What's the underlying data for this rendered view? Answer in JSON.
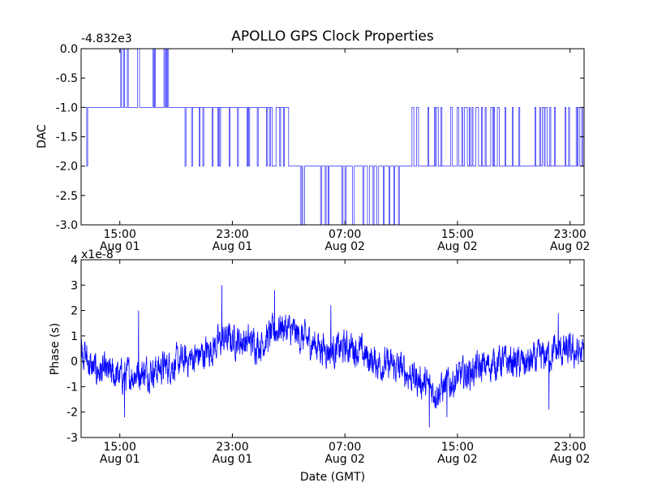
{
  "title": "APOLLO GPS Clock Properties",
  "chart_data": [
    {
      "type": "line",
      "name": "dac-chart",
      "ylabel": "DAC",
      "offset_label": "-4.832e3",
      "ylim": [
        -3.0,
        0.0
      ],
      "yticks": [
        "0.0",
        "-0.5",
        "-1.0",
        "-1.5",
        "-2.0",
        "-2.5",
        "-3.0"
      ],
      "xticks": [
        {
          "time": "15:00",
          "date": "Aug 01"
        },
        {
          "time": "23:00",
          "date": "Aug 01"
        },
        {
          "time": "07:00",
          "date": "Aug 02"
        },
        {
          "time": "15:00",
          "date": "Aug 02"
        },
        {
          "time": "23:00",
          "date": "Aug 02"
        }
      ],
      "xrange": [
        "2012-08-01 12:15",
        "2012-08-03 00:00"
      ],
      "color": "#0000ff",
      "segments": [
        {
          "start": "2012-08-01 12:15",
          "end": "2012-08-01 13:00",
          "level": -1.0,
          "toggle": -2.0
        },
        {
          "start": "2012-08-01 13:00",
          "end": "2012-08-01 15:00",
          "level": -1.0
        },
        {
          "start": "2012-08-01 15:00",
          "end": "2012-08-01 18:30",
          "level": -1.0,
          "toggle": 0.0
        },
        {
          "start": "2012-08-01 18:30",
          "end": "2012-08-01 19:30",
          "level": -1.0
        },
        {
          "start": "2012-08-01 19:30",
          "end": "2012-08-02 03:00",
          "level": -1.0,
          "toggle": -2.0
        },
        {
          "start": "2012-08-02 03:00",
          "end": "2012-08-02 11:30",
          "level": -2.0,
          "toggle": -3.0
        },
        {
          "start": "2012-08-02 11:30",
          "end": "2012-08-03 00:00",
          "level": -2.0,
          "toggle": -1.0
        }
      ]
    },
    {
      "type": "line",
      "name": "phase-chart",
      "ylabel": "Phase (s)",
      "xlabel": "Date (GMT)",
      "offset_label": "x1e-8",
      "ylim": [
        -3,
        4
      ],
      "yticks": [
        "4",
        "3",
        "2",
        "1",
        "0",
        "-1",
        "-2",
        "-3"
      ],
      "xticks": [
        {
          "time": "15:00",
          "date": "Aug 01"
        },
        {
          "time": "23:00",
          "date": "Aug 01"
        },
        {
          "time": "07:00",
          "date": "Aug 02"
        },
        {
          "time": "15:00",
          "date": "Aug 02"
        },
        {
          "time": "23:00",
          "date": "Aug 02"
        }
      ],
      "xrange": [
        "2012-08-01 12:15",
        "2012-08-03 00:00"
      ],
      "color": "#0000ff",
      "trend": [
        {
          "time": "2012-08-01 12:15",
          "value": 0.6
        },
        {
          "time": "2012-08-01 13:00",
          "value": -0.3
        },
        {
          "time": "2012-08-01 15:00",
          "value": -0.6
        },
        {
          "time": "2012-08-01 17:00",
          "value": -0.4
        },
        {
          "time": "2012-08-01 19:00",
          "value": -0.1
        },
        {
          "time": "2012-08-01 21:00",
          "value": 0.3
        },
        {
          "time": "2012-08-01 22:30",
          "value": 0.9
        },
        {
          "time": "2012-08-02 01:00",
          "value": 0.7
        },
        {
          "time": "2012-08-02 02:30",
          "value": 1.4
        },
        {
          "time": "2012-08-02 04:00",
          "value": 0.9
        },
        {
          "time": "2012-08-02 06:00",
          "value": 0.4
        },
        {
          "time": "2012-08-02 07:30",
          "value": 0.6
        },
        {
          "time": "2012-08-02 09:00",
          "value": 0.0
        },
        {
          "time": "2012-08-02 11:00",
          "value": -0.3
        },
        {
          "time": "2012-08-02 13:30",
          "value": -1.2
        },
        {
          "time": "2012-08-02 15:30",
          "value": -0.5
        },
        {
          "time": "2012-08-02 18:00",
          "value": 0.0
        },
        {
          "time": "2012-08-02 20:00",
          "value": -0.1
        },
        {
          "time": "2012-08-02 22:00",
          "value": 0.4
        },
        {
          "time": "2012-08-03 00:00",
          "value": 0.3
        }
      ],
      "spikes": [
        {
          "time": "2012-08-01 15:20",
          "value": -2.2
        },
        {
          "time": "2012-08-01 16:20",
          "value": 2.0
        },
        {
          "time": "2012-08-01 22:15",
          "value": 3.0
        },
        {
          "time": "2012-08-02 02:00",
          "value": 2.8
        },
        {
          "time": "2012-08-02 06:00",
          "value": 2.2
        },
        {
          "time": "2012-08-02 13:00",
          "value": -2.6
        },
        {
          "time": "2012-08-02 14:15",
          "value": -2.2
        },
        {
          "time": "2012-08-02 21:30",
          "value": -1.9
        },
        {
          "time": "2012-08-02 22:10",
          "value": 1.9
        }
      ],
      "noise_amplitude": 0.5
    }
  ]
}
